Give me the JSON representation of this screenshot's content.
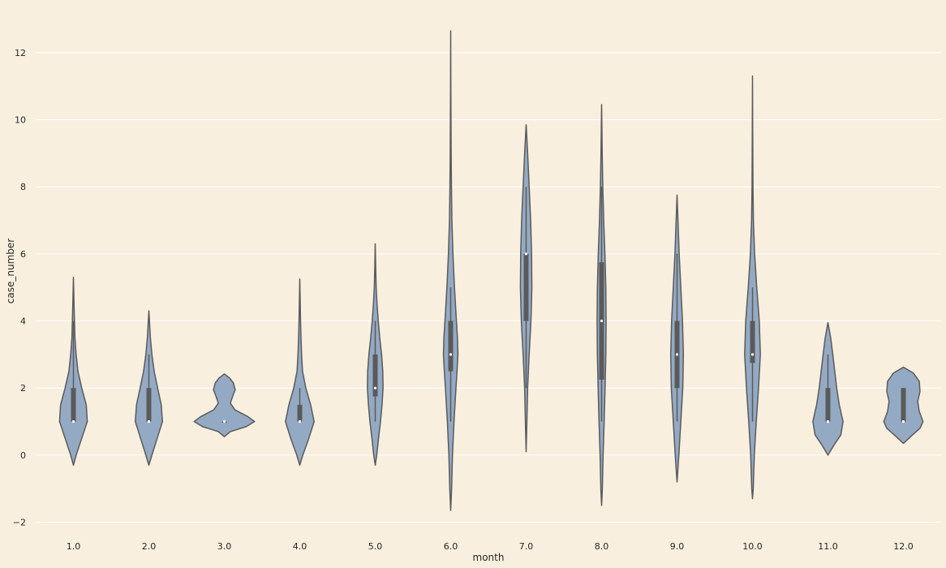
{
  "chart_data": {
    "type": "violin",
    "xlabel": "month",
    "ylabel": "case_number",
    "ylim": [
      -2.35,
      13.4
    ],
    "yticks": [
      -2,
      0,
      2,
      4,
      6,
      8,
      10,
      12
    ],
    "grid": true,
    "colors": {
      "background": "#f8efdf",
      "violin_fill": "#94aac4",
      "violin_edge": "#5a5a5a",
      "grid": "#ffffff",
      "box": "#5a5a5a",
      "median": "#ffffff"
    },
    "categories": [
      "1.0",
      "2.0",
      "3.0",
      "4.0",
      "5.0",
      "6.0",
      "7.0",
      "8.0",
      "9.0",
      "10.0",
      "11.0",
      "12.0"
    ],
    "violins": [
      {
        "category": "1.0",
        "box": {
          "q1": 1,
          "median": 1,
          "q3": 2,
          "whisker_low": 1,
          "whisker_high": 4
        },
        "density": [
          [
            -0.3,
            0
          ],
          [
            0,
            0.18
          ],
          [
            0.5,
            0.55
          ],
          [
            1,
            0.92
          ],
          [
            1.5,
            0.85
          ],
          [
            2,
            0.55
          ],
          [
            2.5,
            0.3
          ],
          [
            3,
            0.18
          ],
          [
            3.5,
            0.1
          ],
          [
            4,
            0.07
          ],
          [
            4.5,
            0.04
          ],
          [
            5.3,
            0
          ]
        ]
      },
      {
        "category": "2.0",
        "box": {
          "q1": 1,
          "median": 1,
          "q3": 2,
          "whisker_low": 1,
          "whisker_high": 3
        },
        "density": [
          [
            -0.3,
            0
          ],
          [
            0,
            0.2
          ],
          [
            0.5,
            0.55
          ],
          [
            1,
            0.9
          ],
          [
            1.5,
            0.82
          ],
          [
            2,
            0.58
          ],
          [
            2.5,
            0.35
          ],
          [
            3,
            0.2
          ],
          [
            3.5,
            0.1
          ],
          [
            4.3,
            0
          ]
        ]
      },
      {
        "category": "3.0",
        "box": {
          "q1": 1,
          "median": 1,
          "q3": 1,
          "whisker_low": 1,
          "whisker_high": 1
        },
        "density": [
          [
            0.55,
            0
          ],
          [
            0.7,
            0.4
          ],
          [
            0.85,
            1.45
          ],
          [
            1,
            2.0
          ],
          [
            1.15,
            1.55
          ],
          [
            1.35,
            0.7
          ],
          [
            1.55,
            0.4
          ],
          [
            1.75,
            0.55
          ],
          [
            1.95,
            0.72
          ],
          [
            2.15,
            0.6
          ],
          [
            2.3,
            0.35
          ],
          [
            2.42,
            0
          ]
        ]
      },
      {
        "category": "4.0",
        "box": {
          "q1": 1,
          "median": 1,
          "q3": 1.5,
          "whisker_low": 1,
          "whisker_high": 2
        },
        "density": [
          [
            -0.3,
            0
          ],
          [
            0,
            0.2
          ],
          [
            0.5,
            0.6
          ],
          [
            1,
            0.95
          ],
          [
            1.5,
            0.72
          ],
          [
            2,
            0.4
          ],
          [
            2.5,
            0.18
          ],
          [
            3,
            0.12
          ],
          [
            3.5,
            0.08
          ],
          [
            4,
            0.05
          ],
          [
            4.5,
            0.03
          ],
          [
            5.25,
            0
          ]
        ]
      },
      {
        "category": "5.0",
        "box": {
          "q1": 1.75,
          "median": 2,
          "q3": 3,
          "whisker_low": 1,
          "whisker_high": 4
        },
        "density": [
          [
            -0.3,
            0
          ],
          [
            0,
            0.1
          ],
          [
            0.5,
            0.22
          ],
          [
            1,
            0.35
          ],
          [
            1.5,
            0.45
          ],
          [
            2,
            0.52
          ],
          [
            2.5,
            0.5
          ],
          [
            3,
            0.42
          ],
          [
            3.5,
            0.3
          ],
          [
            4,
            0.2
          ],
          [
            4.5,
            0.12
          ],
          [
            5,
            0.06
          ],
          [
            5.6,
            0.03
          ],
          [
            6.3,
            0
          ]
        ]
      },
      {
        "category": "6.0",
        "box": {
          "q1": 2.5,
          "median": 3,
          "q3": 4,
          "whisker_low": 1,
          "whisker_high": 5
        },
        "density": [
          [
            -1.65,
            0
          ],
          [
            -1,
            0.06
          ],
          [
            0,
            0.12
          ],
          [
            1,
            0.22
          ],
          [
            2,
            0.35
          ],
          [
            2.5,
            0.42
          ],
          [
            3,
            0.48
          ],
          [
            3.5,
            0.45
          ],
          [
            4,
            0.38
          ],
          [
            5,
            0.25
          ],
          [
            6,
            0.15
          ],
          [
            7,
            0.08
          ],
          [
            8,
            0.05
          ],
          [
            9,
            0.03
          ],
          [
            10,
            0.02
          ],
          [
            11,
            0.01
          ],
          [
            12.65,
            0
          ]
        ]
      },
      {
        "category": "7.0",
        "box": {
          "q1": 4,
          "median": 6,
          "q3": 6,
          "whisker_low": 2,
          "whisker_high": 8
        },
        "density": [
          [
            0.1,
            0
          ],
          [
            1,
            0.05
          ],
          [
            2,
            0.1
          ],
          [
            3,
            0.2
          ],
          [
            4,
            0.32
          ],
          [
            5,
            0.38
          ],
          [
            6,
            0.36
          ],
          [
            7,
            0.3
          ],
          [
            8,
            0.2
          ],
          [
            9,
            0.1
          ],
          [
            9.85,
            0
          ]
        ]
      },
      {
        "category": "8.0",
        "box": {
          "q1": 2.25,
          "median": 4,
          "q3": 5.75,
          "whisker_low": 1,
          "whisker_high": 8
        },
        "density": [
          [
            -1.5,
            0
          ],
          [
            -1,
            0.05
          ],
          [
            0,
            0.1
          ],
          [
            1,
            0.17
          ],
          [
            2,
            0.23
          ],
          [
            3,
            0.28
          ],
          [
            4,
            0.3
          ],
          [
            5,
            0.28
          ],
          [
            6,
            0.22
          ],
          [
            7,
            0.14
          ],
          [
            8,
            0.08
          ],
          [
            9,
            0.04
          ],
          [
            10.45,
            0
          ]
        ]
      },
      {
        "category": "9.0",
        "box": {
          "q1": 2,
          "median": 3,
          "q3": 4,
          "whisker_low": 1,
          "whisker_high": 6
        },
        "density": [
          [
            -0.8,
            0
          ],
          [
            0,
            0.12
          ],
          [
            1,
            0.25
          ],
          [
            2,
            0.38
          ],
          [
            3,
            0.42
          ],
          [
            4,
            0.36
          ],
          [
            5,
            0.25
          ],
          [
            6,
            0.14
          ],
          [
            7,
            0.06
          ],
          [
            7.75,
            0
          ]
        ]
      },
      {
        "category": "10.0",
        "box": {
          "q1": 2.75,
          "median": 3,
          "q3": 4,
          "whisker_low": 1,
          "whisker_high": 5
        },
        "density": [
          [
            -1.3,
            0
          ],
          [
            -1,
            0.05
          ],
          [
            0,
            0.12
          ],
          [
            1,
            0.25
          ],
          [
            2,
            0.4
          ],
          [
            3,
            0.52
          ],
          [
            4,
            0.45
          ],
          [
            5,
            0.28
          ],
          [
            6,
            0.14
          ],
          [
            7,
            0.06
          ],
          [
            8,
            0.03
          ],
          [
            9,
            0.02
          ],
          [
            10,
            0.01
          ],
          [
            11.3,
            0
          ]
        ]
      },
      {
        "category": "11.0",
        "box": {
          "q1": 1,
          "median": 1,
          "q3": 2,
          "whisker_low": 1,
          "whisker_high": 3
        },
        "density": [
          [
            0,
            0
          ],
          [
            0.3,
            0.4
          ],
          [
            0.6,
            0.85
          ],
          [
            1,
            1.0
          ],
          [
            1.5,
            0.75
          ],
          [
            2,
            0.58
          ],
          [
            2.5,
            0.45
          ],
          [
            3,
            0.32
          ],
          [
            3.5,
            0.18
          ],
          [
            3.95,
            0
          ]
        ]
      },
      {
        "category": "12.0",
        "box": {
          "q1": 1,
          "median": 1,
          "q3": 2,
          "whisker_low": 1,
          "whisker_high": 2
        },
        "density": [
          [
            0.35,
            0
          ],
          [
            0.6,
            0.6
          ],
          [
            0.8,
            1.1
          ],
          [
            1,
            1.3
          ],
          [
            1.3,
            1.05
          ],
          [
            1.6,
            0.95
          ],
          [
            1.9,
            1.1
          ],
          [
            2.2,
            1.05
          ],
          [
            2.45,
            0.65
          ],
          [
            2.62,
            0
          ]
        ]
      }
    ]
  }
}
